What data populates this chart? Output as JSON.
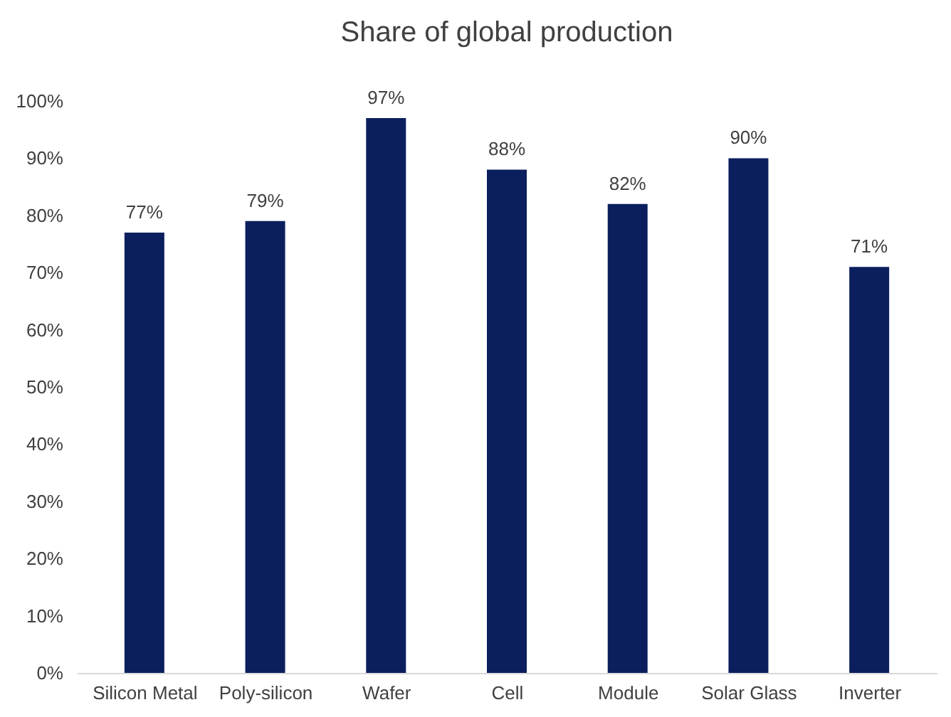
{
  "chart_data": {
    "type": "bar",
    "title": "Share of global production",
    "categories": [
      "Silicon Metal",
      "Poly-silicon",
      "Wafer",
      "Cell",
      "Module",
      "Solar Glass",
      "Inverter"
    ],
    "values": [
      77,
      79,
      97,
      88,
      82,
      90,
      71
    ],
    "value_labels": [
      "77%",
      "79%",
      "97%",
      "88%",
      "82%",
      "90%",
      "71%"
    ],
    "color": "#0b1f5e",
    "ylim": [
      0,
      100
    ],
    "yticks": [
      {
        "value": 0,
        "label": "0%"
      },
      {
        "value": 10,
        "label": "10%"
      },
      {
        "value": 20,
        "label": "20%"
      },
      {
        "value": 30,
        "label": "30%"
      },
      {
        "value": 40,
        "label": "40%"
      },
      {
        "value": 50,
        "label": "50%"
      },
      {
        "value": 60,
        "label": "60%"
      },
      {
        "value": 70,
        "label": "70%"
      },
      {
        "value": 80,
        "label": "80%"
      },
      {
        "value": 90,
        "label": "90%"
      },
      {
        "value": 100,
        "label": "100%"
      }
    ],
    "grid": false
  }
}
